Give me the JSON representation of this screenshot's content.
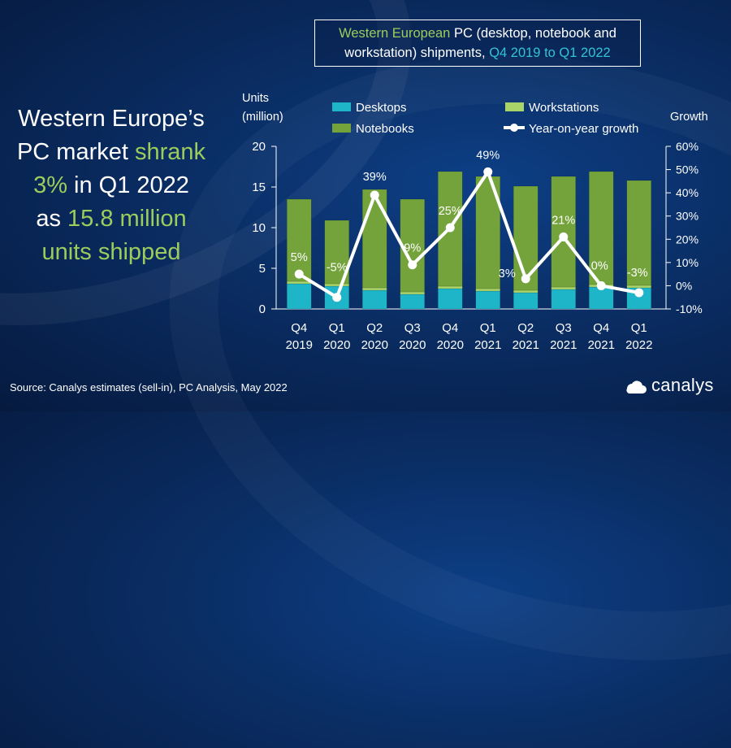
{
  "headline": {
    "line1": "Western Europe’s",
    "line2_a": "PC market ",
    "line2_b": "shrank",
    "line3_a": "3%",
    "line3_b": " in Q1 2022",
    "line4_a": "as ",
    "line4_b": "15.8 million",
    "line5": "units shipped"
  },
  "title": {
    "part1": "Western European",
    "part2": " PC (desktop, notebook and",
    "part3": "workstation) shipments, ",
    "part4": "Q4 2019 to Q1 2022"
  },
  "source": "Source: Canalys estimates (sell-in), PC Analysis, May 2022",
  "logo": {
    "text": "canalys",
    "icon": "canalys-logo-icon"
  },
  "colors": {
    "desktops": "#1fb5c8",
    "workstations": "#a8d46a",
    "notebooks": "#73a33a",
    "growth": "#ffffff",
    "accent_green": "#9ccc5c",
    "accent_cyan": "#31c4d6"
  },
  "chart_data": {
    "type": "bar",
    "stacked": true,
    "categories": [
      [
        "Q4",
        "2019"
      ],
      [
        "Q1",
        "2020"
      ],
      [
        "Q2",
        "2020"
      ],
      [
        "Q3",
        "2020"
      ],
      [
        "Q4",
        "2020"
      ],
      [
        "Q1",
        "2021"
      ],
      [
        "Q2",
        "2021"
      ],
      [
        "Q3",
        "2021"
      ],
      [
        "Q4",
        "2021"
      ],
      [
        "Q1",
        "2022"
      ]
    ],
    "ylabel_left": [
      "Units",
      "(million)"
    ],
    "ylabel_right": "Growth",
    "ylim_left": [
      0,
      20
    ],
    "yticks_left": [
      "0",
      "5",
      "10",
      "15",
      "20"
    ],
    "ylim_right": [
      -10,
      60
    ],
    "yticks_right": [
      "-10%",
      "0%",
      "10%",
      "20%",
      "30%",
      "40%",
      "50%",
      "60%"
    ],
    "legend": [
      "Desktops",
      "Workstations",
      "Notebooks",
      "Year-on-year growth"
    ],
    "legend_position": "top",
    "series": [
      {
        "name": "Desktops",
        "values": [
          3.1,
          2.8,
          2.3,
          1.8,
          2.5,
          2.2,
          2.0,
          2.4,
          2.7,
          2.6
        ]
      },
      {
        "name": "Workstations",
        "values": [
          0.3,
          0.3,
          0.3,
          0.3,
          0.3,
          0.3,
          0.3,
          0.3,
          0.3,
          0.3
        ]
      },
      {
        "name": "Notebooks",
        "values": [
          10.1,
          7.8,
          12.1,
          11.4,
          14.1,
          13.8,
          12.8,
          13.6,
          13.9,
          12.9
        ]
      }
    ],
    "growth": {
      "name": "Year-on-year growth",
      "values": [
        5,
        -5,
        39,
        9,
        25,
        49,
        3,
        21,
        0,
        -3
      ],
      "labels": [
        "5%",
        "-5%",
        "39%",
        "9%",
        "25%",
        "49%",
        "3%",
        "21%",
        "0%",
        "-3%"
      ]
    }
  }
}
